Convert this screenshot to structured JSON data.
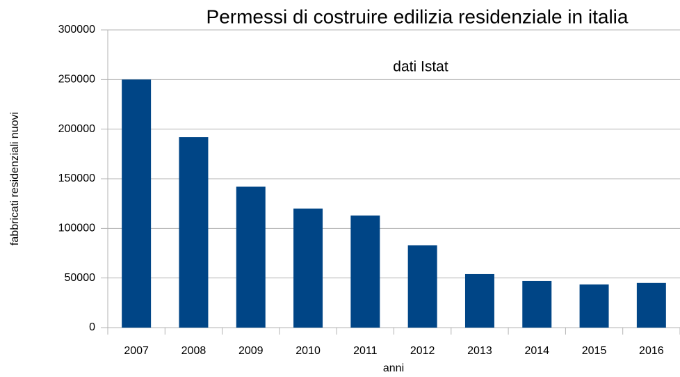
{
  "chart_data": {
    "type": "bar",
    "title": "Permessi di costruire edilizia residenziale in italia",
    "subtitle": "dati Istat",
    "x_label": "anni",
    "y_label": "fabbricati residenziali nuovi",
    "categories": [
      "2007",
      "2008",
      "2009",
      "2010",
      "2011",
      "2012",
      "2013",
      "2014",
      "2015",
      "2016"
    ],
    "values": [
      250000,
      192000,
      142000,
      120000,
      113000,
      83000,
      54000,
      47000,
      43500,
      45000
    ],
    "color": "#004586",
    "ylim": [
      0,
      300000
    ],
    "yticks": [
      0,
      50000,
      100000,
      150000,
      200000,
      250000,
      300000
    ],
    "grid": true
  }
}
